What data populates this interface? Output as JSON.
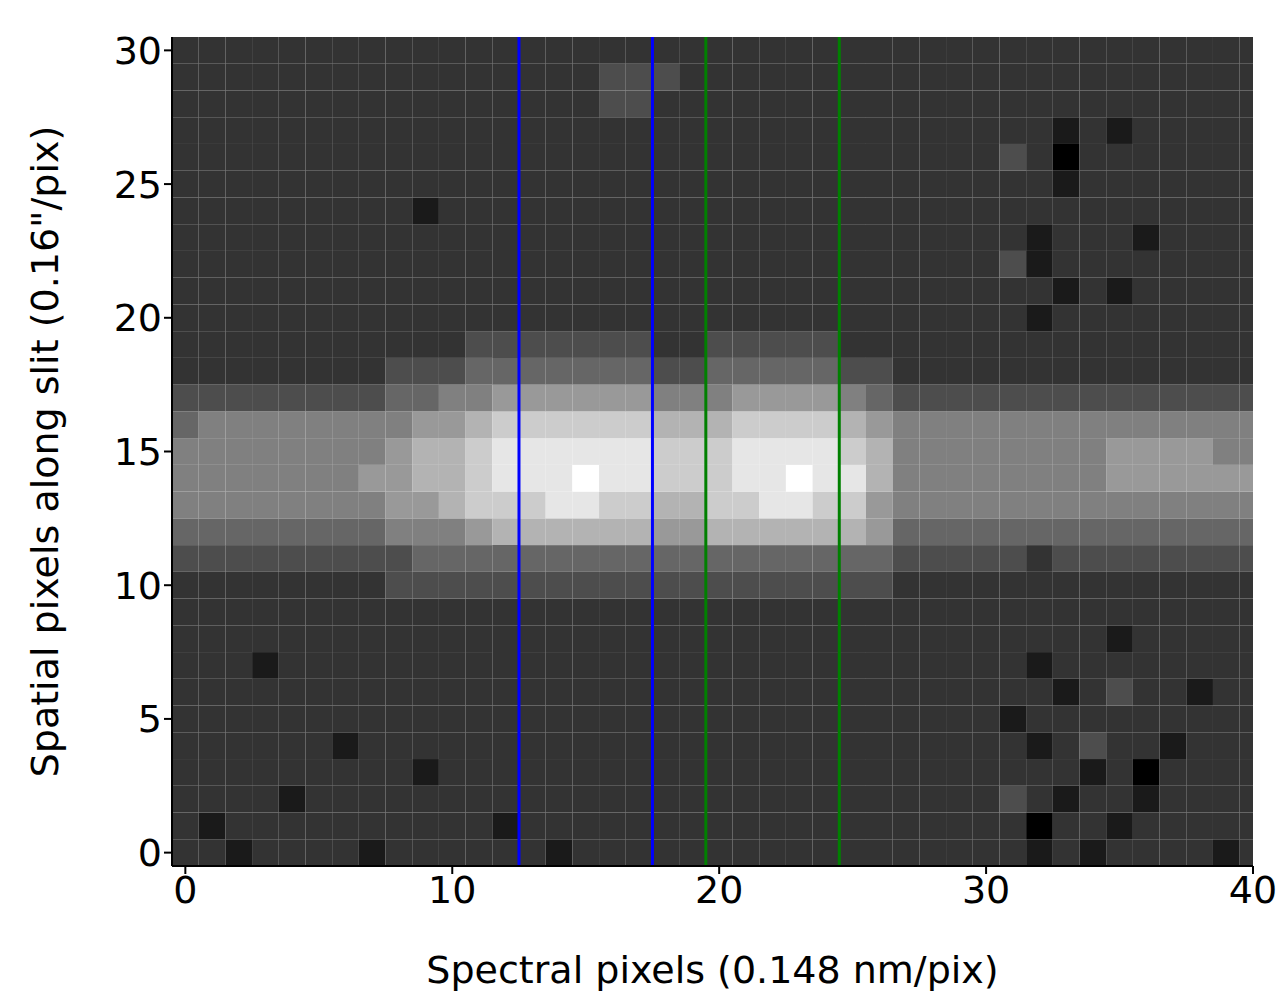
{
  "chart_data": {
    "type": "heatmap",
    "x_label": "Spectral pixels (0.148 nm/pix)",
    "y_label": "Spatial pixels along slit (0.16\"/pix)",
    "xlim": [
      -0.5,
      40
    ],
    "ylim": [
      -0.5,
      30.5
    ],
    "xticks": [
      0,
      10,
      20,
      30,
      40
    ],
    "yticks": [
      0,
      5,
      10,
      15,
      20,
      25,
      30
    ],
    "grid": false,
    "zlim": [
      0,
      10
    ],
    "lines": [
      {
        "x": 12.5,
        "color": "#0000ff"
      },
      {
        "x": 17.5,
        "color": "#0000ff"
      },
      {
        "x": 19.5,
        "color": "#008000"
      },
      {
        "x": 24.5,
        "color": "#008000"
      }
    ],
    "cells": [
      [
        2,
        2,
        1,
        2,
        2,
        2,
        2,
        1,
        2,
        2,
        2,
        2,
        2,
        2,
        1,
        2,
        2,
        2,
        2,
        2,
        2,
        2,
        2,
        2,
        2,
        2,
        2,
        2,
        2,
        2,
        2,
        2,
        1,
        2,
        1,
        2,
        2,
        2,
        2,
        1,
        2
      ],
      [
        2,
        1,
        2,
        2,
        2,
        2,
        2,
        2,
        2,
        2,
        2,
        2,
        1,
        2,
        2,
        2,
        2,
        2,
        2,
        2,
        2,
        2,
        2,
        2,
        2,
        2,
        2,
        2,
        2,
        2,
        2,
        2,
        0,
        2,
        2,
        1,
        2,
        2,
        2,
        2,
        2
      ],
      [
        2,
        2,
        2,
        2,
        1,
        2,
        2,
        2,
        2,
        2,
        2,
        2,
        2,
        2,
        2,
        2,
        2,
        2,
        2,
        2,
        2,
        2,
        2,
        2,
        2,
        2,
        2,
        2,
        2,
        2,
        2,
        3,
        2,
        1,
        2,
        2,
        1,
        2,
        2,
        2,
        2
      ],
      [
        2,
        2,
        2,
        2,
        2,
        2,
        2,
        2,
        2,
        1,
        2,
        2,
        2,
        2,
        2,
        2,
        2,
        2,
        2,
        2,
        2,
        2,
        2,
        2,
        2,
        2,
        2,
        2,
        2,
        2,
        2,
        2,
        2,
        2,
        1,
        2,
        0,
        2,
        2,
        2,
        2
      ],
      [
        2,
        2,
        2,
        2,
        2,
        2,
        1,
        2,
        2,
        2,
        2,
        2,
        2,
        2,
        2,
        2,
        2,
        2,
        2,
        2,
        2,
        2,
        2,
        2,
        2,
        2,
        2,
        2,
        2,
        2,
        2,
        2,
        1,
        2,
        3,
        2,
        2,
        1,
        2,
        2,
        2
      ],
      [
        2,
        2,
        2,
        2,
        2,
        2,
        2,
        2,
        2,
        2,
        2,
        2,
        2,
        2,
        2,
        2,
        2,
        2,
        2,
        2,
        2,
        2,
        2,
        2,
        2,
        2,
        2,
        2,
        2,
        2,
        2,
        1,
        2,
        2,
        2,
        2,
        2,
        2,
        2,
        2,
        2
      ],
      [
        2,
        2,
        2,
        2,
        2,
        2,
        2,
        2,
        2,
        2,
        2,
        2,
        2,
        2,
        2,
        2,
        2,
        2,
        2,
        2,
        2,
        2,
        2,
        2,
        2,
        2,
        2,
        2,
        2,
        2,
        2,
        2,
        2,
        1,
        2,
        3,
        2,
        2,
        1,
        2,
        2
      ],
      [
        2,
        2,
        2,
        1,
        2,
        2,
        2,
        2,
        2,
        2,
        2,
        2,
        2,
        2,
        2,
        2,
        2,
        2,
        2,
        2,
        2,
        2,
        2,
        2,
        2,
        2,
        2,
        2,
        2,
        2,
        2,
        2,
        1,
        2,
        2,
        2,
        2,
        2,
        2,
        2,
        2
      ],
      [
        2,
        2,
        2,
        2,
        2,
        2,
        2,
        2,
        2,
        2,
        2,
        2,
        2,
        2,
        2,
        2,
        2,
        2,
        2,
        2,
        2,
        2,
        2,
        2,
        2,
        2,
        2,
        2,
        2,
        2,
        2,
        2,
        2,
        2,
        2,
        1,
        2,
        2,
        2,
        2,
        2
      ],
      [
        2,
        2,
        2,
        2,
        2,
        2,
        2,
        2,
        2,
        2,
        2,
        2,
        2,
        2,
        2,
        2,
        2,
        2,
        2,
        2,
        2,
        2,
        2,
        2,
        2,
        2,
        2,
        2,
        2,
        2,
        2,
        2,
        2,
        2,
        2,
        2,
        2,
        2,
        2,
        2,
        2
      ],
      [
        2,
        2,
        2,
        2,
        2,
        2,
        2,
        2,
        3,
        3,
        3,
        3,
        3,
        3,
        3,
        3,
        3,
        3,
        3,
        3,
        3,
        3,
        3,
        3,
        3,
        3,
        3,
        2,
        2,
        2,
        2,
        2,
        2,
        2,
        2,
        2,
        2,
        2,
        2,
        2,
        2
      ],
      [
        3,
        3,
        3,
        3,
        3,
        3,
        3,
        3,
        3,
        4,
        4,
        4,
        4,
        4,
        4,
        4,
        4,
        4,
        4,
        4,
        4,
        4,
        4,
        4,
        4,
        4,
        4,
        3,
        3,
        3,
        3,
        3,
        2,
        3,
        3,
        3,
        3,
        3,
        3,
        3,
        3
      ],
      [
        4,
        4,
        4,
        4,
        4,
        4,
        4,
        4,
        5,
        5,
        5,
        6,
        7,
        7,
        7,
        7,
        7,
        7,
        6,
        6,
        7,
        7,
        7,
        7,
        7,
        7,
        6,
        4,
        4,
        4,
        4,
        4,
        4,
        4,
        4,
        4,
        4,
        4,
        4,
        4,
        4
      ],
      [
        5,
        5,
        5,
        5,
        5,
        5,
        5,
        5,
        6,
        6,
        7,
        8,
        8,
        8,
        9,
        9,
        8,
        8,
        7,
        7,
        8,
        8,
        9,
        9,
        8,
        8,
        6,
        5,
        5,
        5,
        5,
        5,
        5,
        5,
        5,
        5,
        5,
        5,
        5,
        5,
        5
      ],
      [
        5,
        5,
        5,
        5,
        5,
        5,
        5,
        6,
        6,
        7,
        7,
        8,
        9,
        9,
        9,
        10,
        9,
        9,
        8,
        8,
        8,
        9,
        9,
        10,
        9,
        9,
        7,
        5,
        5,
        5,
        5,
        5,
        5,
        5,
        5,
        6,
        6,
        6,
        6,
        6,
        6
      ],
      [
        5,
        5,
        5,
        5,
        5,
        5,
        5,
        5,
        6,
        7,
        7,
        8,
        9,
        9,
        9,
        9,
        9,
        9,
        8,
        8,
        8,
        9,
        9,
        9,
        9,
        8,
        7,
        5,
        5,
        5,
        5,
        5,
        5,
        5,
        5,
        6,
        6,
        6,
        6,
        5,
        5
      ],
      [
        4,
        5,
        5,
        5,
        5,
        5,
        5,
        5,
        5,
        6,
        6,
        7,
        8,
        8,
        8,
        8,
        8,
        8,
        7,
        7,
        7,
        8,
        8,
        8,
        8,
        7,
        6,
        5,
        5,
        5,
        5,
        5,
        5,
        5,
        5,
        5,
        5,
        5,
        5,
        5,
        5
      ],
      [
        3,
        3,
        3,
        3,
        3,
        3,
        3,
        3,
        4,
        4,
        5,
        5,
        6,
        6,
        6,
        6,
        6,
        6,
        5,
        5,
        5,
        6,
        6,
        6,
        6,
        5,
        4,
        3,
        3,
        3,
        3,
        3,
        3,
        3,
        3,
        3,
        3,
        3,
        3,
        3,
        3
      ],
      [
        2,
        2,
        2,
        2,
        2,
        2,
        2,
        2,
        3,
        3,
        3,
        4,
        4,
        4,
        4,
        4,
        4,
        4,
        3,
        3,
        4,
        4,
        4,
        4,
        4,
        3,
        3,
        2,
        2,
        2,
        2,
        2,
        2,
        2,
        2,
        2,
        2,
        2,
        2,
        2,
        2
      ],
      [
        2,
        2,
        2,
        2,
        2,
        2,
        2,
        2,
        2,
        2,
        2,
        3,
        3,
        3,
        3,
        3,
        3,
        3,
        2,
        2,
        3,
        3,
        3,
        3,
        3,
        2,
        2,
        2,
        2,
        2,
        2,
        2,
        2,
        2,
        2,
        2,
        2,
        2,
        2,
        2,
        2
      ],
      [
        2,
        2,
        2,
        2,
        2,
        2,
        2,
        2,
        2,
        2,
        2,
        2,
        2,
        2,
        2,
        2,
        2,
        2,
        2,
        2,
        2,
        2,
        2,
        2,
        2,
        2,
        2,
        2,
        2,
        2,
        2,
        2,
        1,
        2,
        2,
        2,
        2,
        2,
        2,
        2,
        2
      ],
      [
        2,
        2,
        2,
        2,
        2,
        2,
        2,
        2,
        2,
        2,
        2,
        2,
        2,
        2,
        2,
        2,
        2,
        2,
        2,
        2,
        2,
        2,
        2,
        2,
        2,
        2,
        2,
        2,
        2,
        2,
        2,
        2,
        2,
        1,
        2,
        1,
        2,
        2,
        2,
        2,
        2
      ],
      [
        2,
        2,
        2,
        2,
        2,
        2,
        2,
        2,
        2,
        2,
        2,
        2,
        2,
        2,
        2,
        2,
        2,
        2,
        2,
        2,
        2,
        2,
        2,
        2,
        2,
        2,
        2,
        2,
        2,
        2,
        2,
        3,
        1,
        2,
        2,
        2,
        2,
        2,
        2,
        2,
        2
      ],
      [
        2,
        2,
        2,
        2,
        2,
        2,
        2,
        2,
        2,
        2,
        2,
        2,
        2,
        2,
        2,
        2,
        2,
        2,
        2,
        2,
        2,
        2,
        2,
        2,
        2,
        2,
        2,
        2,
        2,
        2,
        2,
        2,
        1,
        2,
        2,
        2,
        1,
        2,
        2,
        2,
        2
      ],
      [
        2,
        2,
        2,
        2,
        2,
        2,
        2,
        2,
        2,
        1,
        2,
        2,
        2,
        2,
        2,
        2,
        2,
        2,
        2,
        2,
        2,
        2,
        2,
        2,
        2,
        2,
        2,
        2,
        2,
        2,
        2,
        2,
        2,
        2,
        2,
        2,
        2,
        2,
        2,
        2,
        2
      ],
      [
        2,
        2,
        2,
        2,
        2,
        2,
        2,
        2,
        2,
        2,
        2,
        2,
        2,
        2,
        2,
        2,
        2,
        2,
        2,
        2,
        2,
        2,
        2,
        2,
        2,
        2,
        2,
        2,
        2,
        2,
        2,
        2,
        2,
        1,
        2,
        2,
        2,
        2,
        2,
        2,
        2
      ],
      [
        2,
        2,
        2,
        2,
        2,
        2,
        2,
        2,
        2,
        2,
        2,
        2,
        2,
        2,
        2,
        2,
        2,
        2,
        2,
        2,
        2,
        2,
        2,
        2,
        2,
        2,
        2,
        2,
        2,
        2,
        2,
        3,
        2,
        0,
        2,
        2,
        2,
        2,
        2,
        2,
        2
      ],
      [
        2,
        2,
        2,
        2,
        2,
        2,
        2,
        2,
        2,
        2,
        2,
        2,
        2,
        2,
        2,
        2,
        2,
        2,
        2,
        2,
        2,
        2,
        2,
        2,
        2,
        2,
        2,
        2,
        2,
        2,
        2,
        2,
        2,
        1,
        2,
        1,
        2,
        2,
        2,
        2,
        2
      ],
      [
        2,
        2,
        2,
        2,
        2,
        2,
        2,
        2,
        2,
        2,
        2,
        2,
        2,
        2,
        2,
        2,
        3,
        3,
        2,
        2,
        2,
        2,
        2,
        2,
        2,
        2,
        2,
        2,
        2,
        2,
        2,
        2,
        2,
        2,
        2,
        2,
        2,
        2,
        2,
        2,
        2
      ],
      [
        2,
        2,
        2,
        2,
        2,
        2,
        2,
        2,
        2,
        2,
        2,
        2,
        2,
        2,
        2,
        2,
        3,
        3,
        3,
        2,
        2,
        2,
        2,
        2,
        2,
        2,
        2,
        2,
        2,
        2,
        2,
        2,
        2,
        2,
        2,
        2,
        2,
        2,
        2,
        2,
        2
      ],
      [
        2,
        2,
        2,
        2,
        2,
        2,
        2,
        2,
        2,
        2,
        2,
        2,
        2,
        2,
        2,
        2,
        2,
        2,
        2,
        2,
        2,
        2,
        2,
        2,
        2,
        2,
        2,
        2,
        2,
        2,
        2,
        2,
        2,
        2,
        2,
        2,
        2,
        2,
        2,
        2,
        2
      ]
    ]
  }
}
